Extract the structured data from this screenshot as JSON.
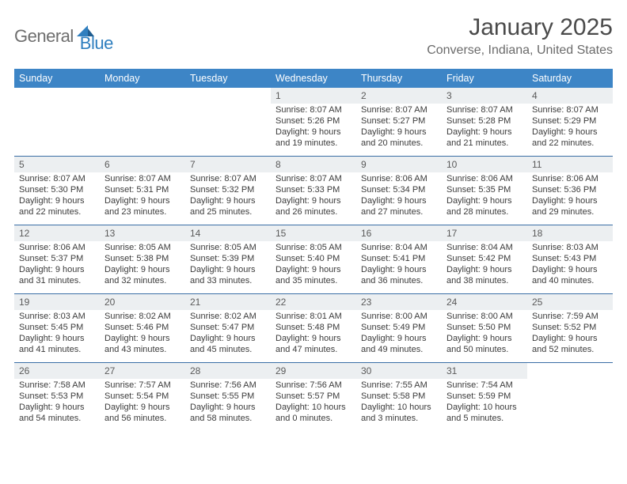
{
  "brand": {
    "word1": "General",
    "word2": "Blue",
    "word1_color": "#6e6e6e",
    "word2_color": "#2f7fbf",
    "mark_color": "#2f7fbf"
  },
  "title": "January 2025",
  "location": "Converse, Indiana, United States",
  "style": {
    "header_bg": "#3d85c6",
    "header_text": "#ffffff",
    "daynum_bg": "#eceff1",
    "week_rule": "#3a6ea5",
    "body_text": "#3b3b3b",
    "title_color": "#4a4a4a",
    "location_color": "#6b6b6b",
    "font_family": "Arial",
    "month_title_fontsize": 30,
    "location_fontsize": 16,
    "dow_fontsize": 12.5,
    "daynum_fontsize": 12,
    "body_fontsize": 11
  },
  "dow": [
    "Sunday",
    "Monday",
    "Tuesday",
    "Wednesday",
    "Thursday",
    "Friday",
    "Saturday"
  ],
  "weeks": [
    [
      {
        "n": "",
        "lines": []
      },
      {
        "n": "",
        "lines": []
      },
      {
        "n": "",
        "lines": []
      },
      {
        "n": "1",
        "lines": [
          "Sunrise: 8:07 AM",
          "Sunset: 5:26 PM",
          "Daylight: 9 hours",
          "and 19 minutes."
        ]
      },
      {
        "n": "2",
        "lines": [
          "Sunrise: 8:07 AM",
          "Sunset: 5:27 PM",
          "Daylight: 9 hours",
          "and 20 minutes."
        ]
      },
      {
        "n": "3",
        "lines": [
          "Sunrise: 8:07 AM",
          "Sunset: 5:28 PM",
          "Daylight: 9 hours",
          "and 21 minutes."
        ]
      },
      {
        "n": "4",
        "lines": [
          "Sunrise: 8:07 AM",
          "Sunset: 5:29 PM",
          "Daylight: 9 hours",
          "and 22 minutes."
        ]
      }
    ],
    [
      {
        "n": "5",
        "lines": [
          "Sunrise: 8:07 AM",
          "Sunset: 5:30 PM",
          "Daylight: 9 hours",
          "and 22 minutes."
        ]
      },
      {
        "n": "6",
        "lines": [
          "Sunrise: 8:07 AM",
          "Sunset: 5:31 PM",
          "Daylight: 9 hours",
          "and 23 minutes."
        ]
      },
      {
        "n": "7",
        "lines": [
          "Sunrise: 8:07 AM",
          "Sunset: 5:32 PM",
          "Daylight: 9 hours",
          "and 25 minutes."
        ]
      },
      {
        "n": "8",
        "lines": [
          "Sunrise: 8:07 AM",
          "Sunset: 5:33 PM",
          "Daylight: 9 hours",
          "and 26 minutes."
        ]
      },
      {
        "n": "9",
        "lines": [
          "Sunrise: 8:06 AM",
          "Sunset: 5:34 PM",
          "Daylight: 9 hours",
          "and 27 minutes."
        ]
      },
      {
        "n": "10",
        "lines": [
          "Sunrise: 8:06 AM",
          "Sunset: 5:35 PM",
          "Daylight: 9 hours",
          "and 28 minutes."
        ]
      },
      {
        "n": "11",
        "lines": [
          "Sunrise: 8:06 AM",
          "Sunset: 5:36 PM",
          "Daylight: 9 hours",
          "and 29 minutes."
        ]
      }
    ],
    [
      {
        "n": "12",
        "lines": [
          "Sunrise: 8:06 AM",
          "Sunset: 5:37 PM",
          "Daylight: 9 hours",
          "and 31 minutes."
        ]
      },
      {
        "n": "13",
        "lines": [
          "Sunrise: 8:05 AM",
          "Sunset: 5:38 PM",
          "Daylight: 9 hours",
          "and 32 minutes."
        ]
      },
      {
        "n": "14",
        "lines": [
          "Sunrise: 8:05 AM",
          "Sunset: 5:39 PM",
          "Daylight: 9 hours",
          "and 33 minutes."
        ]
      },
      {
        "n": "15",
        "lines": [
          "Sunrise: 8:05 AM",
          "Sunset: 5:40 PM",
          "Daylight: 9 hours",
          "and 35 minutes."
        ]
      },
      {
        "n": "16",
        "lines": [
          "Sunrise: 8:04 AM",
          "Sunset: 5:41 PM",
          "Daylight: 9 hours",
          "and 36 minutes."
        ]
      },
      {
        "n": "17",
        "lines": [
          "Sunrise: 8:04 AM",
          "Sunset: 5:42 PM",
          "Daylight: 9 hours",
          "and 38 minutes."
        ]
      },
      {
        "n": "18",
        "lines": [
          "Sunrise: 8:03 AM",
          "Sunset: 5:43 PM",
          "Daylight: 9 hours",
          "and 40 minutes."
        ]
      }
    ],
    [
      {
        "n": "19",
        "lines": [
          "Sunrise: 8:03 AM",
          "Sunset: 5:45 PM",
          "Daylight: 9 hours",
          "and 41 minutes."
        ]
      },
      {
        "n": "20",
        "lines": [
          "Sunrise: 8:02 AM",
          "Sunset: 5:46 PM",
          "Daylight: 9 hours",
          "and 43 minutes."
        ]
      },
      {
        "n": "21",
        "lines": [
          "Sunrise: 8:02 AM",
          "Sunset: 5:47 PM",
          "Daylight: 9 hours",
          "and 45 minutes."
        ]
      },
      {
        "n": "22",
        "lines": [
          "Sunrise: 8:01 AM",
          "Sunset: 5:48 PM",
          "Daylight: 9 hours",
          "and 47 minutes."
        ]
      },
      {
        "n": "23",
        "lines": [
          "Sunrise: 8:00 AM",
          "Sunset: 5:49 PM",
          "Daylight: 9 hours",
          "and 49 minutes."
        ]
      },
      {
        "n": "24",
        "lines": [
          "Sunrise: 8:00 AM",
          "Sunset: 5:50 PM",
          "Daylight: 9 hours",
          "and 50 minutes."
        ]
      },
      {
        "n": "25",
        "lines": [
          "Sunrise: 7:59 AM",
          "Sunset: 5:52 PM",
          "Daylight: 9 hours",
          "and 52 minutes."
        ]
      }
    ],
    [
      {
        "n": "26",
        "lines": [
          "Sunrise: 7:58 AM",
          "Sunset: 5:53 PM",
          "Daylight: 9 hours",
          "and 54 minutes."
        ]
      },
      {
        "n": "27",
        "lines": [
          "Sunrise: 7:57 AM",
          "Sunset: 5:54 PM",
          "Daylight: 9 hours",
          "and 56 minutes."
        ]
      },
      {
        "n": "28",
        "lines": [
          "Sunrise: 7:56 AM",
          "Sunset: 5:55 PM",
          "Daylight: 9 hours",
          "and 58 minutes."
        ]
      },
      {
        "n": "29",
        "lines": [
          "Sunrise: 7:56 AM",
          "Sunset: 5:57 PM",
          "Daylight: 10 hours",
          "and 0 minutes."
        ]
      },
      {
        "n": "30",
        "lines": [
          "Sunrise: 7:55 AM",
          "Sunset: 5:58 PM",
          "Daylight: 10 hours",
          "and 3 minutes."
        ]
      },
      {
        "n": "31",
        "lines": [
          "Sunrise: 7:54 AM",
          "Sunset: 5:59 PM",
          "Daylight: 10 hours",
          "and 5 minutes."
        ]
      },
      {
        "n": "",
        "lines": []
      }
    ]
  ]
}
